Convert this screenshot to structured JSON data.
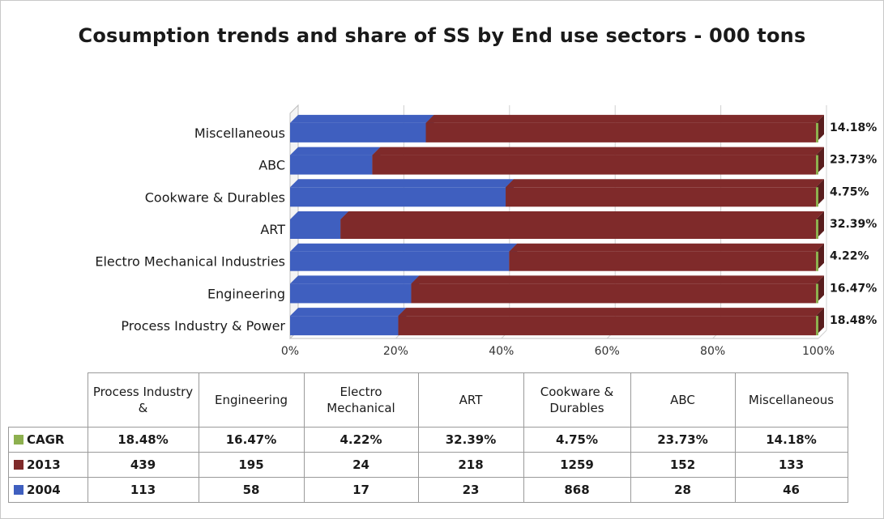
{
  "chart_data": {
    "type": "bar",
    "orientation": "horizontal",
    "stacked": "percent",
    "title": "Cosumption trends and share of SS by End use sectors - 000 tons",
    "categories": [
      "Process Industry & Power",
      "Engineering",
      "Electro Mechanical Industries",
      "ART",
      "Cookware & Durables",
      "ABC",
      "Miscellaneous"
    ],
    "table_headers": [
      "Process Industry &",
      "Engineering",
      "Electro Mechanical",
      "ART",
      "Cookware & Durables",
      "ABC",
      "Miscellaneous"
    ],
    "series": [
      {
        "name": "2004",
        "values": [
          113,
          58,
          17,
          23,
          868,
          28,
          46
        ],
        "color": "#3f5fbf"
      },
      {
        "name": "2013",
        "values": [
          439,
          195,
          24,
          218,
          1259,
          152,
          133
        ],
        "color": "#7f2a2a"
      },
      {
        "name": "CAGR",
        "values": [
          "18.48%",
          "16.47%",
          "4.22%",
          "32.39%",
          "4.75%",
          "23.73%",
          "14.18%"
        ],
        "color": "#8db04f"
      }
    ],
    "x_ticks": [
      "0%",
      "20%",
      "40%",
      "60%",
      "80%",
      "100%"
    ],
    "xlim": [
      0,
      100
    ],
    "grid": true,
    "legend": "data-table"
  }
}
